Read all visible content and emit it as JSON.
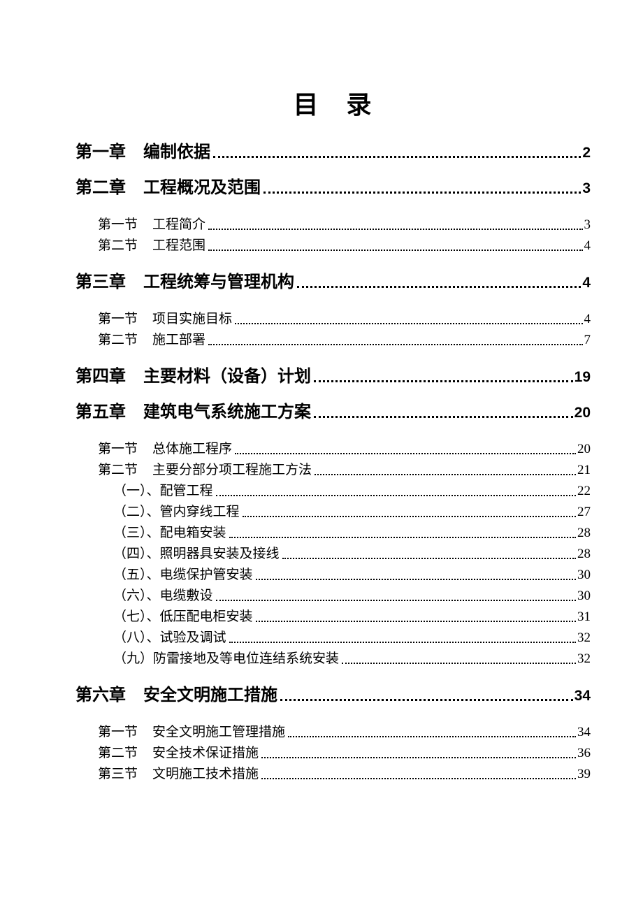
{
  "colors": {
    "background": "#ffffff",
    "text": "#000000"
  },
  "page": {
    "title": "目　录"
  },
  "toc": {
    "entries": [
      {
        "level": 1,
        "label": "第一章",
        "title": "编制依据",
        "page": "2"
      },
      {
        "level": 1,
        "label": "第二章",
        "title": "工程概况及范围",
        "page": "3"
      },
      {
        "level": 2,
        "label": "第一节",
        "title": "工程简介",
        "page": "3"
      },
      {
        "level": 2,
        "label": "第二节",
        "title": "工程范围",
        "page": "4"
      },
      {
        "level": 1,
        "label": "第三章",
        "title": "工程统筹与管理机构",
        "page": "4"
      },
      {
        "level": 2,
        "label": "第一节",
        "title": "项目实施目标",
        "page": "4"
      },
      {
        "level": 2,
        "label": "第二节",
        "title": "施工部署",
        "page": "7"
      },
      {
        "level": 1,
        "label": "第四章",
        "title": "主要材料（设备）计划",
        "page": "19"
      },
      {
        "level": 1,
        "label": "第五章",
        "title": "建筑电气系统施工方案",
        "page": "20"
      },
      {
        "level": 2,
        "label": "第一节",
        "title": "总体施工程序",
        "page": "20"
      },
      {
        "level": 2,
        "label": "第二节",
        "title": "主要分部分项工程施工方法",
        "page": "21"
      },
      {
        "level": 3,
        "label": "（一）、",
        "title": "配管工程",
        "page": "22"
      },
      {
        "level": 3,
        "label": "（二）、",
        "title": "管内穿线工程",
        "page": "27"
      },
      {
        "level": 3,
        "label": "（三）、",
        "title": "配电箱安装",
        "page": "28"
      },
      {
        "level": 3,
        "label": "（四）、",
        "title": "照明器具安装及接线",
        "page": "28"
      },
      {
        "level": 3,
        "label": "（五）、",
        "title": "电缆保护管安装",
        "page": "30"
      },
      {
        "level": 3,
        "label": "（六）、",
        "title": "电缆敷设",
        "page": "30"
      },
      {
        "level": 3,
        "label": "（七）、",
        "title": "低压配电柜安装",
        "page": "31"
      },
      {
        "level": 3,
        "label": "（八）、",
        "title": "试验及调试",
        "page": "32"
      },
      {
        "level": 3,
        "label": "（九）",
        "title": "防雷接地及等电位连结系统安装",
        "page": "32"
      },
      {
        "level": 1,
        "label": "第六章",
        "title": "安全文明施工措施",
        "page": "34"
      },
      {
        "level": 2,
        "label": "第一节",
        "title": "安全文明施工管理措施",
        "page": "34"
      },
      {
        "level": 2,
        "label": "第二节",
        "title": "安全技术保证措施",
        "page": "36"
      },
      {
        "level": 2,
        "label": "第三节",
        "title": "文明施工技术措施",
        "page": "39"
      }
    ]
  }
}
